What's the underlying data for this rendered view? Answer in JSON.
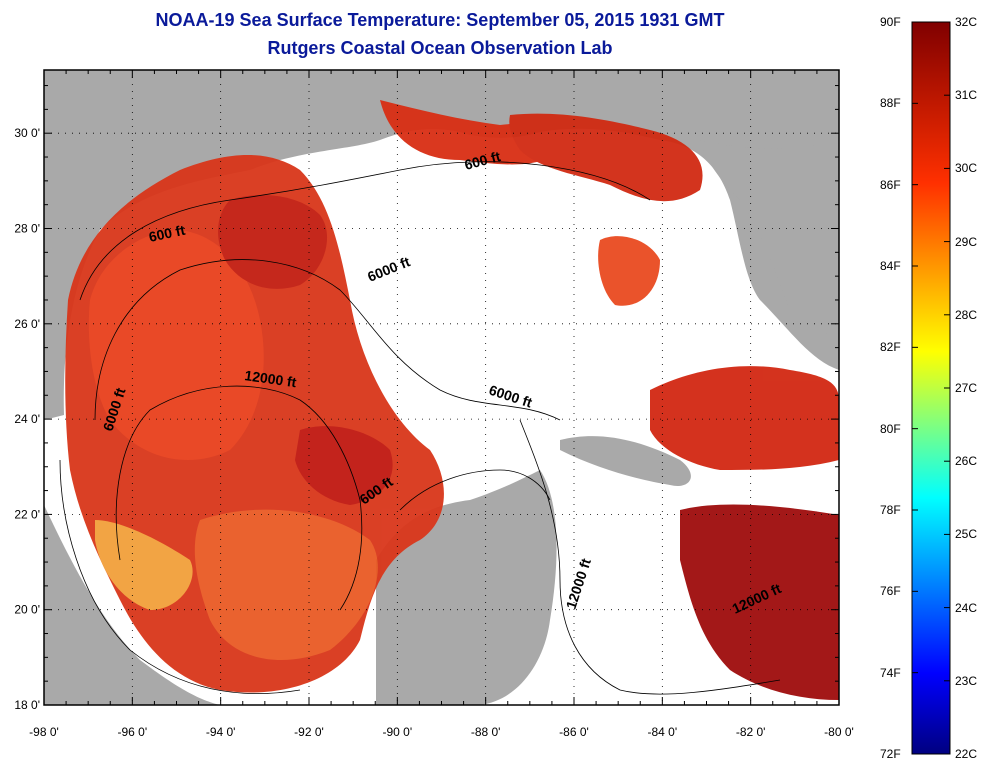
{
  "header": {
    "title": "NOAA-19 Sea Surface Temperature:  September 05, 2015 1931 GMT",
    "subtitle": "Rutgers Coastal Ocean Observation Lab"
  },
  "map": {
    "lon_labels": [
      "-98 0'",
      "-96 0'",
      "-94 0'",
      "-92 0'",
      "-90 0'",
      "-88 0'",
      "-86 0'",
      "-84 0'",
      "-82 0'",
      "-80 0'"
    ],
    "lat_labels": [
      "18 0'",
      "20 0'",
      "22 0'",
      "24 0'",
      "26 0'",
      "28 0'",
      "30 0'"
    ],
    "contour_labels": [
      "600 ft",
      "600 ft",
      "6000 ft",
      "6000 ft",
      "6000 ft",
      "12000 ft",
      "12000 ft",
      "12000 ft",
      "600 ft"
    ],
    "colors": {
      "land": "#a9a9a9",
      "no_data": "#ffffff",
      "warm": "#d42a10",
      "hot": "#a80c0c"
    }
  },
  "colorbar": {
    "fahrenheit": [
      "90F",
      "88F",
      "86F",
      "84F",
      "82F",
      "80F",
      "78F",
      "76F",
      "74F",
      "72F"
    ],
    "celsius": [
      "32C",
      "31C",
      "30C",
      "29C",
      "28C",
      "27C",
      "26C",
      "25C",
      "24C",
      "23C",
      "22C"
    ],
    "colormap": "jet"
  }
}
